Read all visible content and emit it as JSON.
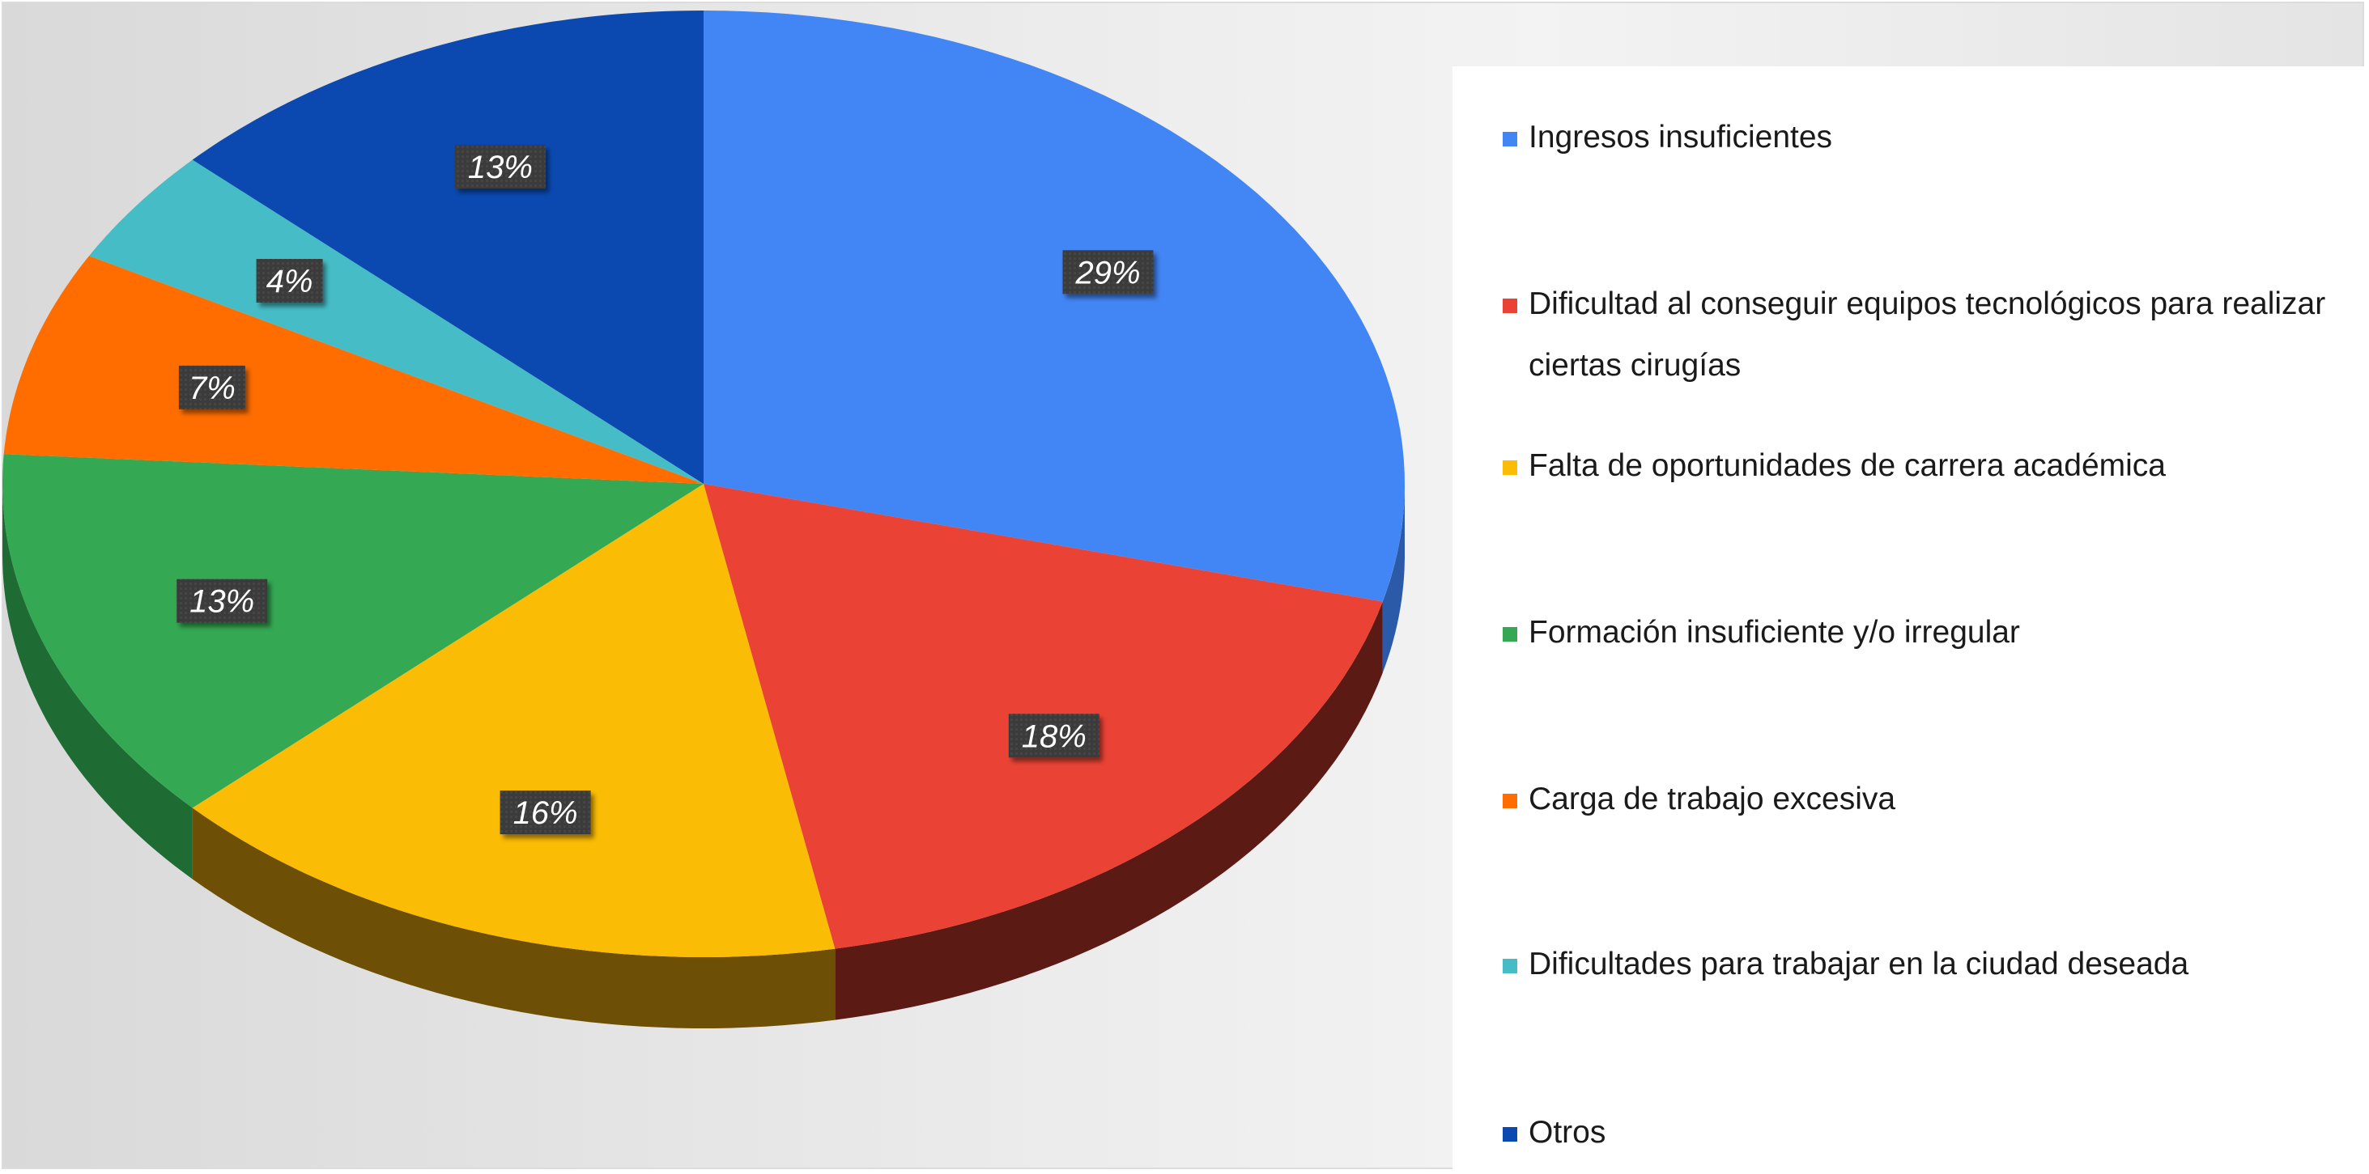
{
  "chart_data": {
    "type": "pie",
    "style": "3d",
    "legend_position": "right",
    "slices": [
      {
        "label": "Ingresos insuficientes",
        "value": 29,
        "value_label": "29%",
        "color": "#4285f4",
        "side_color": "#2a5aa8"
      },
      {
        "label": "Dificultad al conseguir equipos tecnológicos para realizar ciertas cirugías",
        "value": 18,
        "value_label": "18%",
        "color": "#ea4335",
        "side_color": "#5c1a15"
      },
      {
        "label": "Falta de oportunidades de carrera académica",
        "value": 16,
        "value_label": "16%",
        "color": "#fbbc05",
        "side_color": "#6e4f06"
      },
      {
        "label": "Formación insuficiente y/o irregular",
        "value": 13,
        "value_label": "13%",
        "color": "#34a853",
        "side_color": "#1e6b33"
      },
      {
        "label": "Carga de trabajo excesiva",
        "value": 7,
        "value_label": "7%",
        "color": "#ff6d01",
        "side_color": "#9a4200"
      },
      {
        "label": "Dificultades para trabajar en la ciudad deseada",
        "value": 4,
        "value_label": "4%",
        "color": "#46bdc6",
        "side_color": "#2a7a80"
      },
      {
        "label": "Otros",
        "value": 13,
        "value_label": "13%",
        "color": "#0b49b0",
        "side_color": "#062b68"
      }
    ]
  }
}
